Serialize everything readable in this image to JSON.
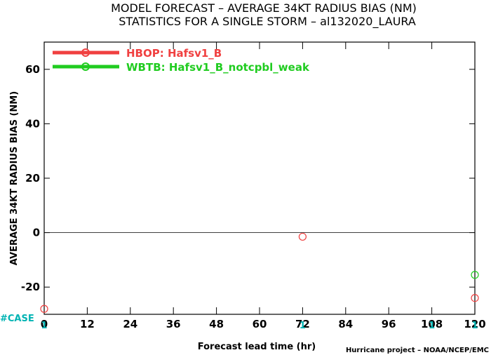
{
  "chart_data": {
    "type": "scatter",
    "title": "MODEL FORECAST – AVERAGE 34KT RADIUS BIAS (NM)",
    "subtitle": "STATISTICS FOR A SINGLE STORM – al132020_LAURA",
    "xlabel": "Forecast lead time (hr)",
    "ylabel": "AVERAGE 34KT RADIUS BIAS (NM)",
    "xlim": [
      0,
      120
    ],
    "ylim": [
      -30,
      70
    ],
    "xticks": [
      0,
      12,
      24,
      36,
      48,
      60,
      72,
      84,
      96,
      108,
      120
    ],
    "yticks": [
      -20,
      0,
      20,
      40,
      60
    ],
    "zero_line": true,
    "legend_position": "top-left",
    "series": [
      {
        "name": "HBOP: Hafsv1_B",
        "color": "#f04040",
        "points": [
          {
            "x": 0,
            "y": -28
          },
          {
            "x": 72,
            "y": -1.5
          },
          {
            "x": 120,
            "y": -24
          }
        ]
      },
      {
        "name": "WBTB: Hafsv1_B_notcpbl_weak",
        "color": "#20cc20",
        "points": [
          {
            "x": 120,
            "y": -15.5
          }
        ]
      }
    ],
    "case_label": "#CASE",
    "case_counts": [
      {
        "x": 0,
        "count": "1"
      },
      {
        "x": 72,
        "count": "1"
      },
      {
        "x": 108,
        "count": "1"
      },
      {
        "x": 120,
        "count": "1"
      }
    ],
    "credit": "Hurricane project – NOAA/NCEP/EMC"
  }
}
